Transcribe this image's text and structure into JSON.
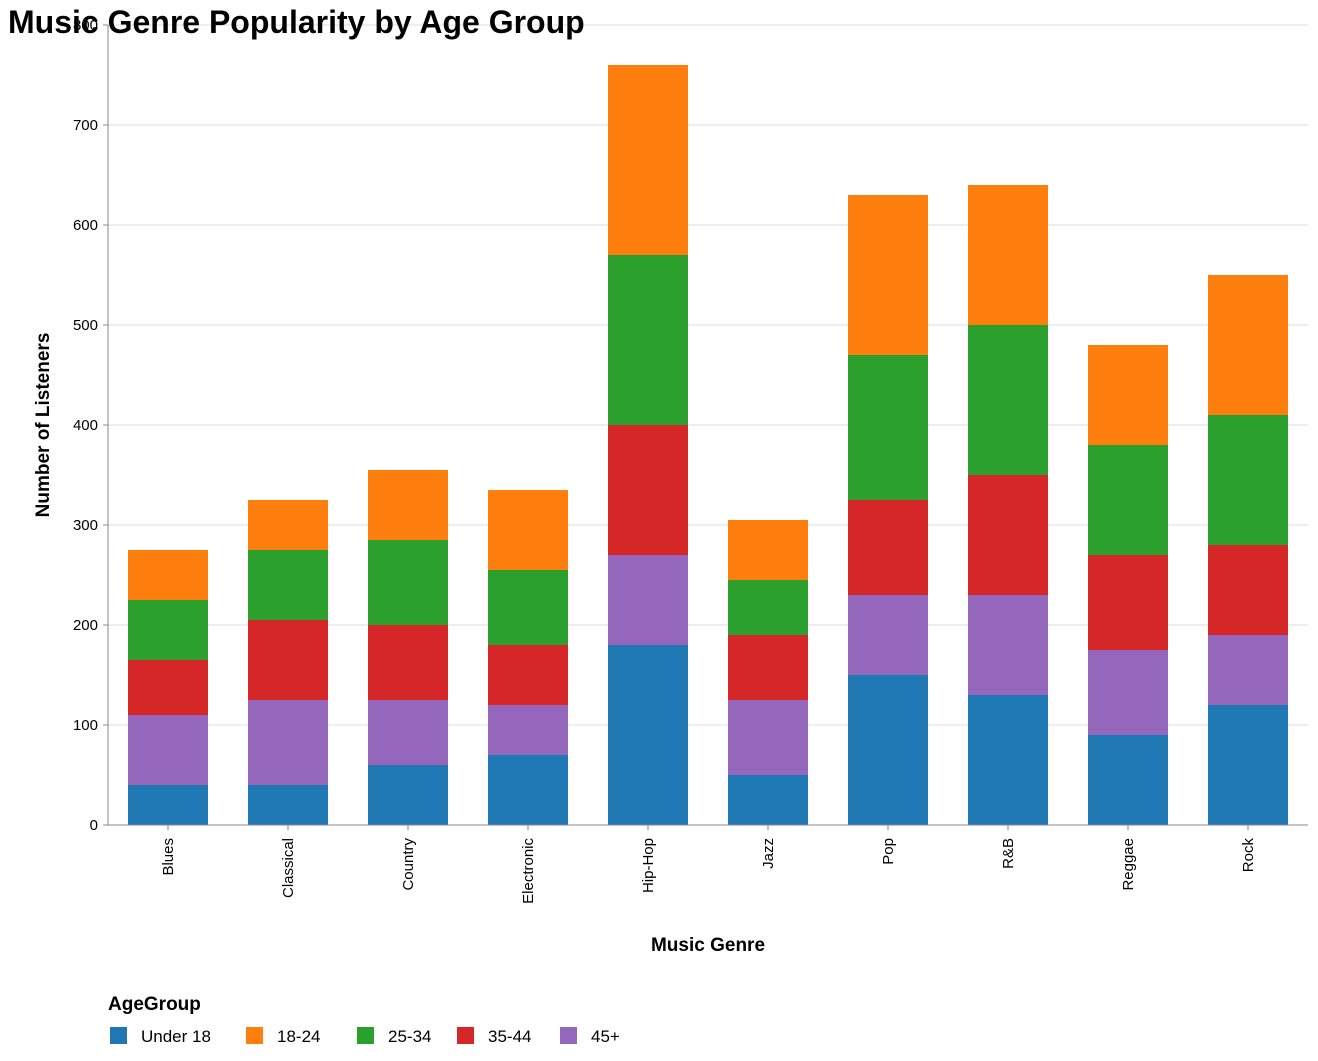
{
  "chart_data": {
    "type": "bar",
    "stacked": true,
    "title": "Music Genre Popularity by Age Group",
    "xlabel": "Music Genre",
    "ylabel": "Number of Listeners",
    "ylim": [
      0,
      800
    ],
    "yticks": [
      0,
      100,
      200,
      300,
      400,
      500,
      600,
      700,
      800
    ],
    "grid": true,
    "legend_title": "AgeGroup",
    "legend_position": "bottom-left",
    "categories": [
      "Blues",
      "Classical",
      "Country",
      "Electronic",
      "Hip-Hop",
      "Jazz",
      "Pop",
      "R&B",
      "Reggae",
      "Rock"
    ],
    "series": [
      {
        "name": "Under 18",
        "color": "#1f77b4",
        "values": [
          40,
          40,
          60,
          70,
          180,
          50,
          150,
          130,
          90,
          120
        ]
      },
      {
        "name": "45+",
        "color": "#9467bd",
        "values": [
          70,
          85,
          65,
          50,
          90,
          75,
          80,
          100,
          85,
          70
        ]
      },
      {
        "name": "35-44",
        "color": "#d62728",
        "values": [
          55,
          80,
          75,
          60,
          130,
          65,
          95,
          120,
          95,
          90
        ]
      },
      {
        "name": "25-34",
        "color": "#2ca02c",
        "values": [
          60,
          70,
          85,
          75,
          170,
          55,
          145,
          150,
          110,
          130
        ]
      },
      {
        "name": "18-24",
        "color": "#ff7f0e",
        "values": [
          50,
          50,
          70,
          80,
          190,
          60,
          160,
          140,
          100,
          140
        ]
      }
    ],
    "legend_order": [
      "Under 18",
      "18-24",
      "25-34",
      "35-44",
      "45+"
    ]
  }
}
